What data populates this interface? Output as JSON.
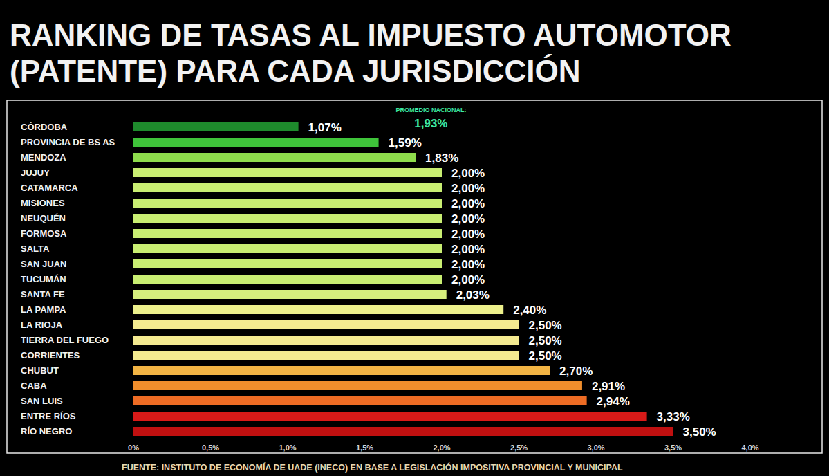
{
  "chart_data": {
    "type": "bar",
    "orientation": "horizontal",
    "title": "RANKING DE TASAS AL IMPUESTO AUTOMOTOR (PATENTE) PARA CADA JURISDICCIÓN",
    "categories": [
      "CÓRDOBA",
      "PROVINCIA DE BS AS",
      "MENDOZA",
      "JUJUY",
      "CATAMARCA",
      "MISIONES",
      "NEUQUÉN",
      "FORMOSA",
      "SALTA",
      "SAN JUAN",
      "TUCUMÁN",
      "SANTA FE",
      "LA PAMPA",
      "LA RIOJA",
      "TIERRA DEL FUEGO",
      "CORRIENTES",
      "CHUBUT",
      "CABA",
      "SAN LUIS",
      "ENTRE RÍOS",
      "RÍO NEGRO"
    ],
    "values": [
      1.07,
      1.59,
      1.83,
      2.0,
      2.0,
      2.0,
      2.0,
      2.0,
      2.0,
      2.0,
      2.0,
      2.03,
      2.4,
      2.5,
      2.5,
      2.5,
      2.7,
      2.91,
      2.94,
      3.33,
      3.5
    ],
    "value_labels": [
      "1,07%",
      "1,59%",
      "1,83%",
      "2,00%",
      "2,00%",
      "2,00%",
      "2,00%",
      "2,00%",
      "2,00%",
      "2,00%",
      "2,00%",
      "2,03%",
      "2,40%",
      "2,50%",
      "2,50%",
      "2,50%",
      "2,70%",
      "2,91%",
      "2,94%",
      "3,33%",
      "3,50%"
    ],
    "colors": [
      "#1e8a2c",
      "#3fc43a",
      "#8edc4c",
      "#c9ee72",
      "#c9ee72",
      "#c9ee72",
      "#c9ee72",
      "#c9ee72",
      "#c9ee72",
      "#c9ee72",
      "#c9ee72",
      "#d6ef7e",
      "#ecf08c",
      "#f4ea90",
      "#f4ea90",
      "#f4ea90",
      "#f2b444",
      "#f08e2c",
      "#ee6c24",
      "#d81a18",
      "#c01010"
    ],
    "xlim": [
      0,
      4
    ],
    "xticks": [
      {
        "value": 0,
        "label": "0%"
      },
      {
        "value": 0.5,
        "label": "0,5%"
      },
      {
        "value": 1,
        "label": "1,0%"
      },
      {
        "value": 1.5,
        "label": "1,5%"
      },
      {
        "value": 2,
        "label": "2,0%"
      },
      {
        "value": 2.5,
        "label": "2,5%"
      },
      {
        "value": 3,
        "label": "3,0%"
      },
      {
        "value": 3.5,
        "label": "3,5%"
      },
      {
        "value": 4,
        "label": "4,0%"
      }
    ],
    "grid": false,
    "data_labels": true,
    "annotation": {
      "text": "PROMEDIO NACIONAL:",
      "value": 1.93,
      "label": "1,93%"
    },
    "source": "FUENTE: INSTITUTO DE ECONOMÍA DE UADE (INECO) EN BASE A LEGISLACIÓN IMPOSITIVA PROVINCIAL Y MUNICIPAL"
  }
}
